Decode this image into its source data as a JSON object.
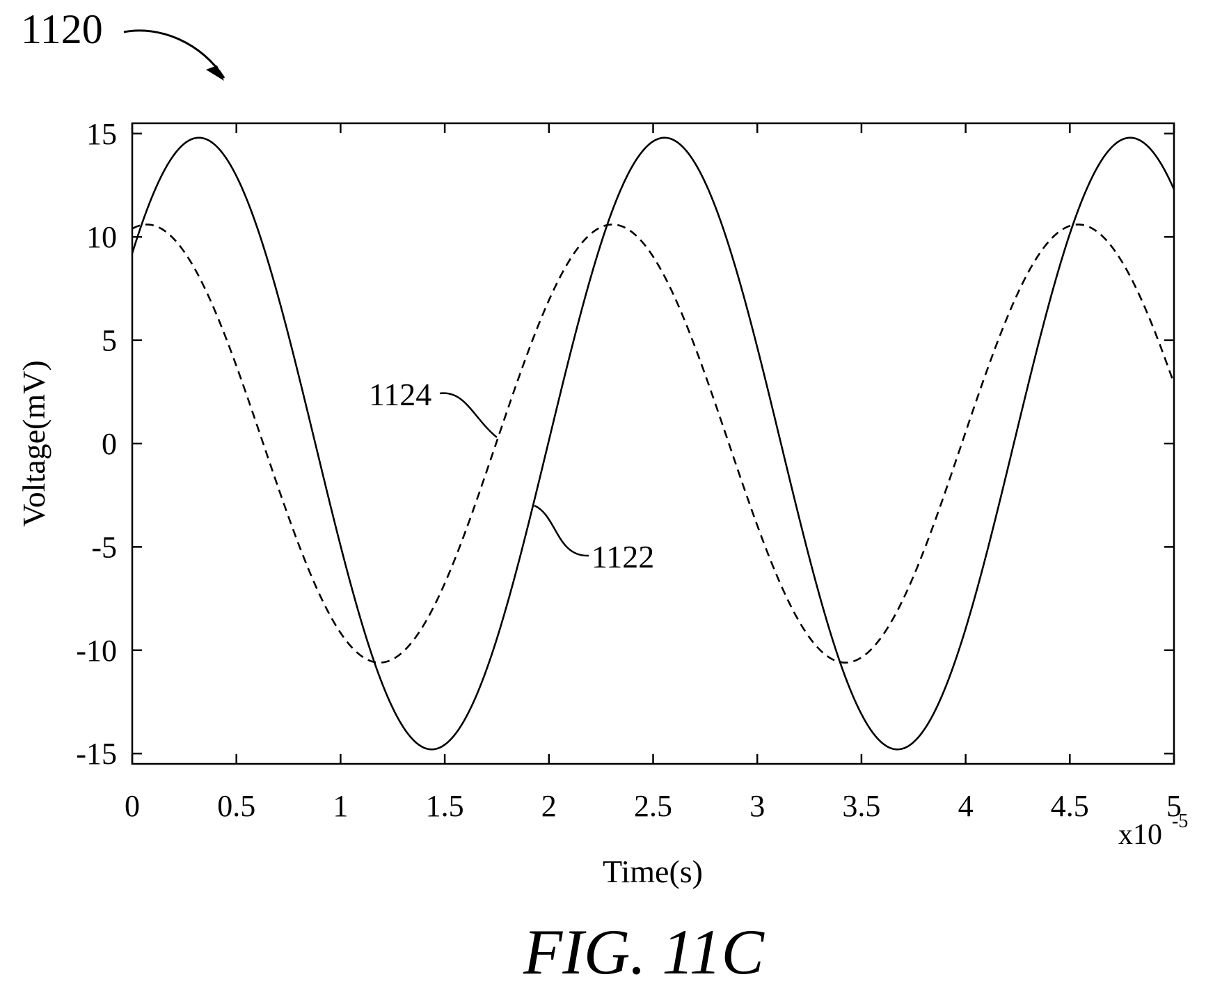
{
  "figure": {
    "reference_numeral": "1120",
    "caption": "FIG. 11C"
  },
  "chart_data": {
    "type": "line",
    "title": "",
    "xlabel": "Time(s)",
    "ylabel": "Voltage(mV)",
    "x_multiplier_base": "x10",
    "x_multiplier_exponent": "-5",
    "xlim": [
      0,
      5
    ],
    "ylim": [
      -15.5,
      15.5
    ],
    "grid": false,
    "x_ticks": [
      "0",
      "0.5",
      "1",
      "1.5",
      "2",
      "2.5",
      "3",
      "3.5",
      "4",
      "4.5",
      "5"
    ],
    "x_tick_values": [
      0,
      0.5,
      1,
      1.5,
      2,
      2.5,
      3,
      3.5,
      4,
      4.5,
      5
    ],
    "y_ticks": [
      "15",
      "10",
      "5",
      "0",
      "-5",
      "-10",
      "-15"
    ],
    "y_tick_values": [
      15,
      10,
      5,
      0,
      -5,
      -10,
      -15
    ],
    "series": [
      {
        "name": "1122",
        "style": "solid",
        "color": "#000000",
        "amplitude": 14.8,
        "period": 2.235,
        "peak_at": 0.32,
        "label_anchor": [
          1.93,
          -3.0
        ]
      },
      {
        "name": "1124",
        "style": "dashed",
        "color": "#000000",
        "amplitude": 10.6,
        "period": 2.235,
        "peak_at": 0.07,
        "label_anchor": [
          1.75,
          0.3
        ]
      }
    ]
  }
}
